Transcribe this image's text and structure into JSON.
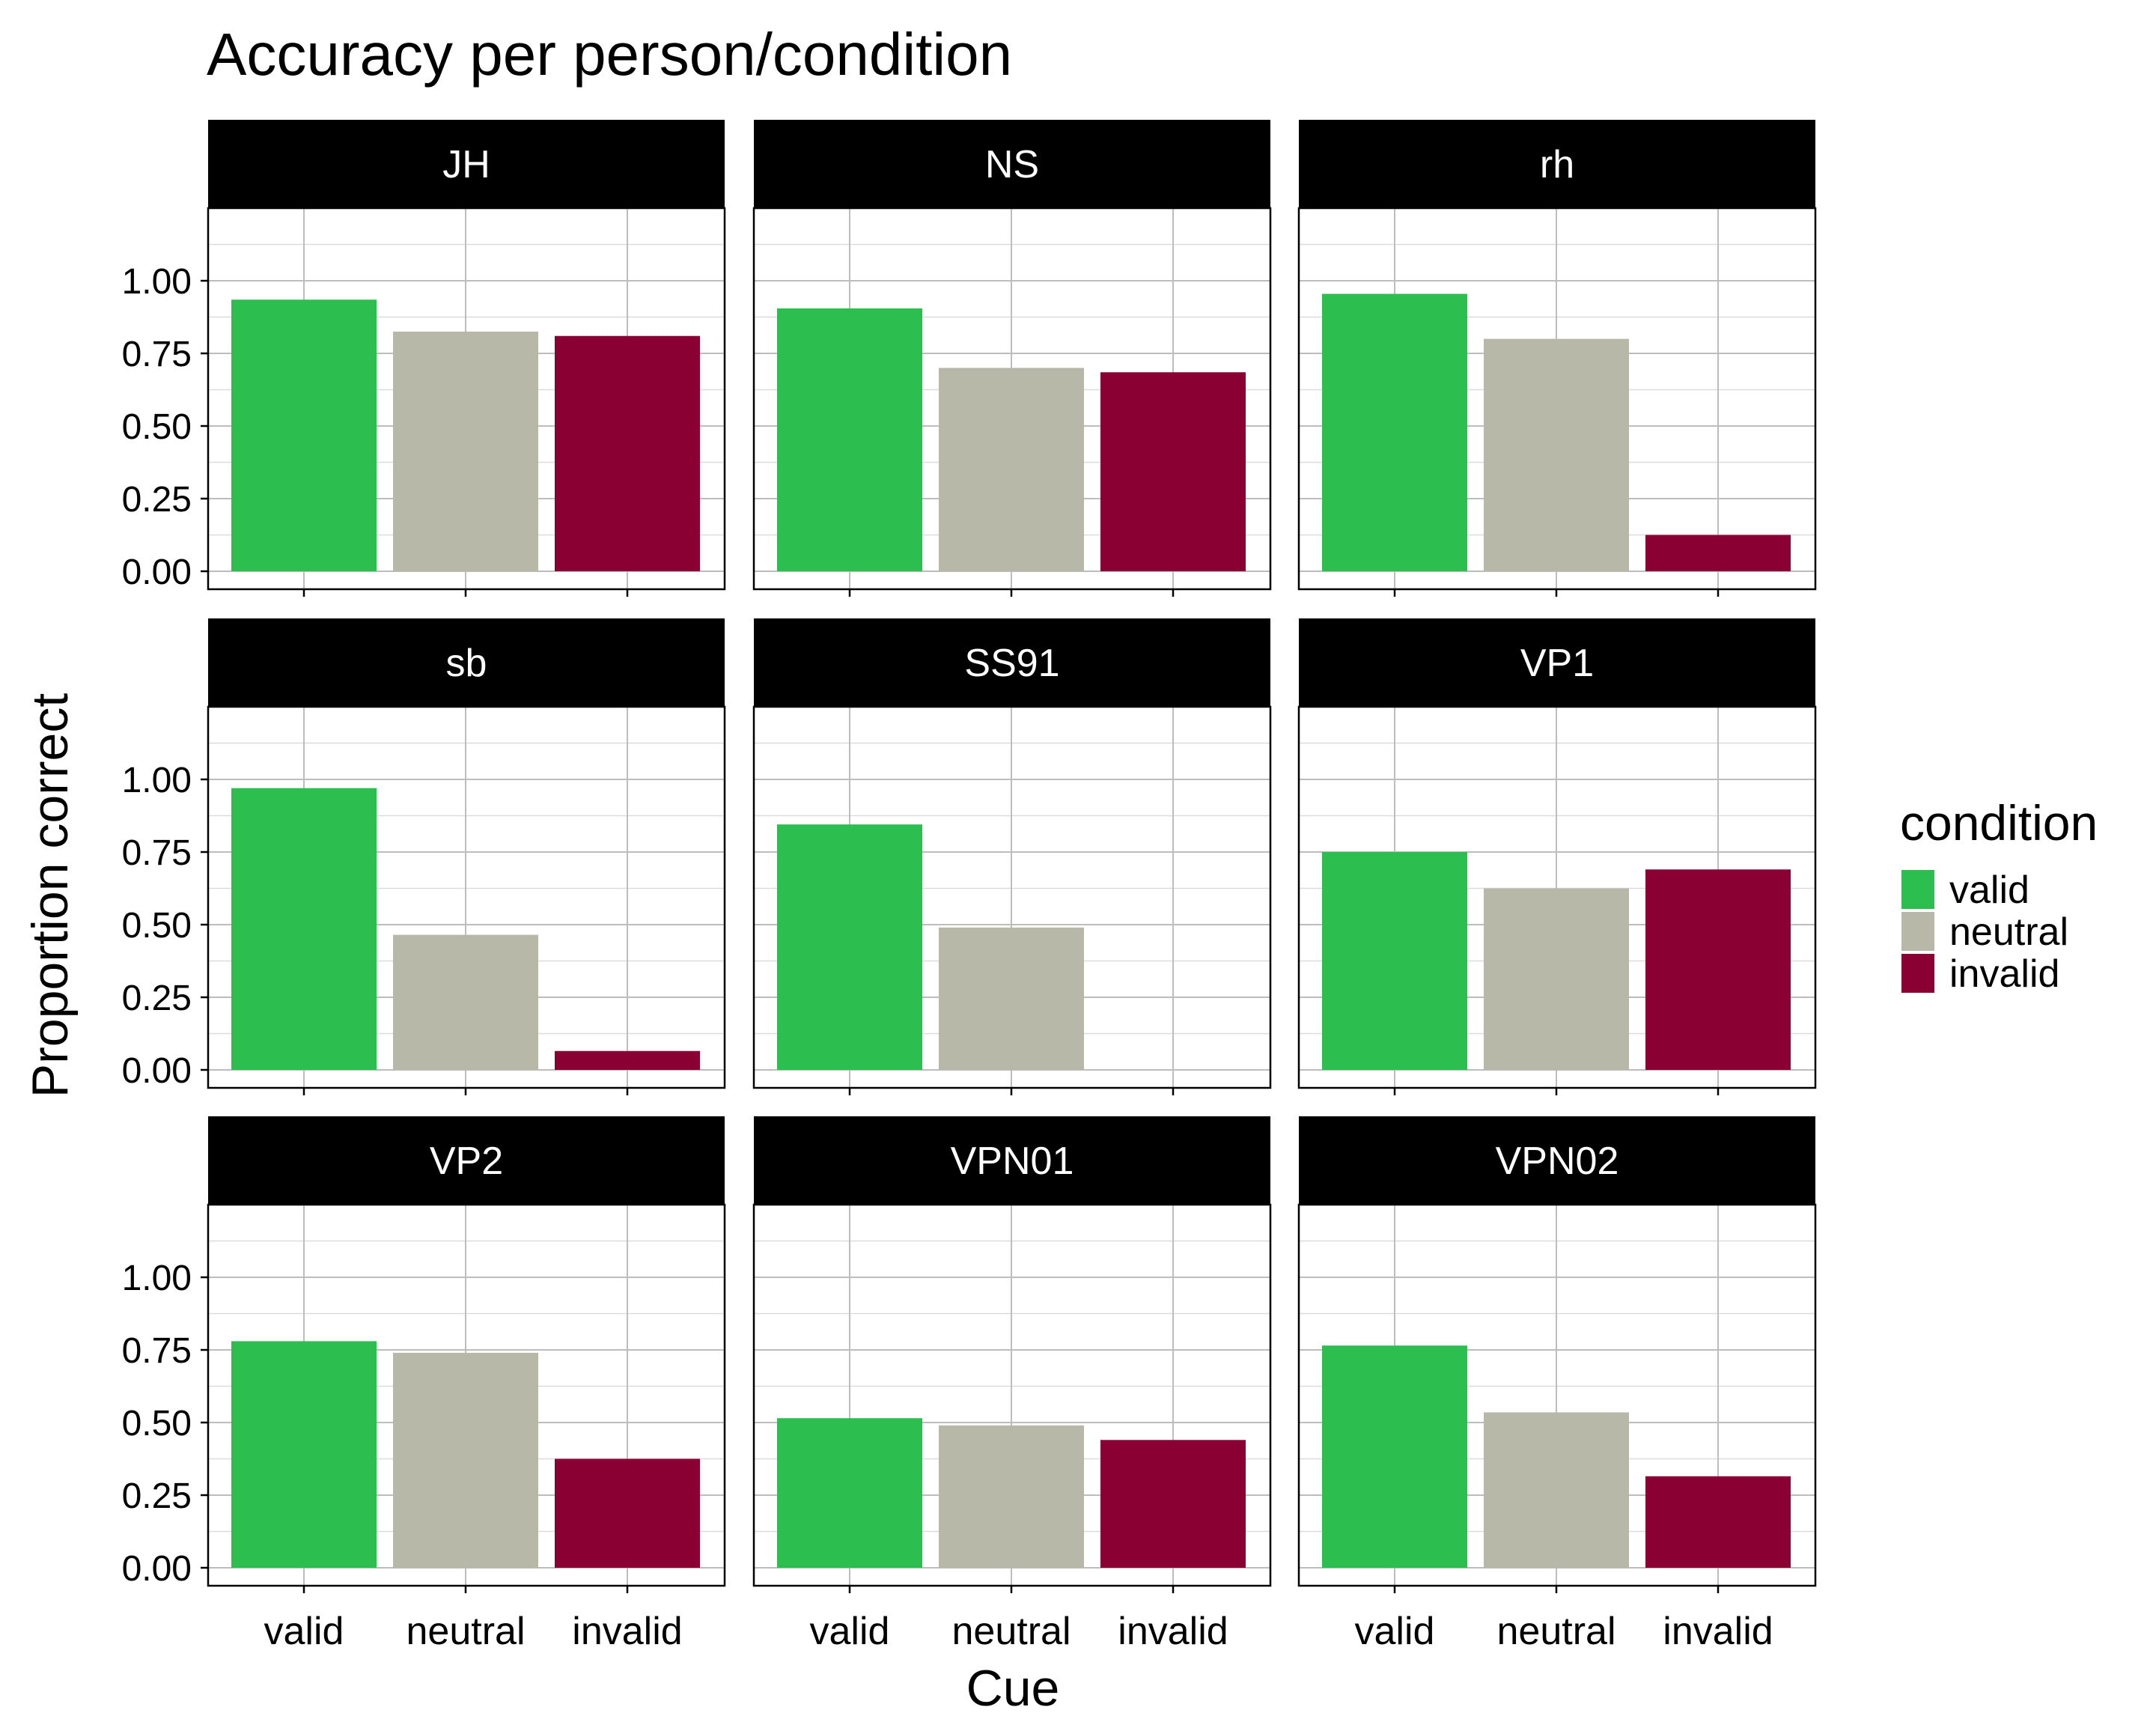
{
  "chart_data": {
    "type": "bar",
    "title": "Accuracy per person/condition",
    "xlabel": "Cue",
    "ylabel": "Proportion correct",
    "categories": [
      "valid",
      "neutral",
      "invalid"
    ],
    "ylim": [
      0,
      1.25
    ],
    "yticks": [
      "0.00",
      "0.25",
      "0.50",
      "0.75",
      "1.00"
    ],
    "ytick_values": [
      0,
      0.25,
      0.5,
      0.75,
      1.0
    ],
    "grid": true,
    "legend": {
      "title": "condition",
      "position": "right",
      "entries": [
        {
          "label": "valid",
          "color": "#2dbe50"
        },
        {
          "label": "neutral",
          "color": "#b7b8a8"
        },
        {
          "label": "invalid",
          "color": "#8a0033"
        }
      ]
    },
    "facets": [
      {
        "name": "JH",
        "values": [
          0.935,
          0.825,
          0.81
        ]
      },
      {
        "name": "NS",
        "values": [
          0.905,
          0.7,
          0.685
        ]
      },
      {
        "name": "rh",
        "values": [
          0.955,
          0.8,
          0.125
        ]
      },
      {
        "name": "sb",
        "values": [
          0.97,
          0.465,
          0.065
        ]
      },
      {
        "name": "SS91",
        "values": [
          0.845,
          0.49,
          null
        ]
      },
      {
        "name": "VP1",
        "values": [
          0.75,
          0.625,
          0.69
        ]
      },
      {
        "name": "VP2",
        "values": [
          0.78,
          0.74,
          0.375
        ]
      },
      {
        "name": "VPN01",
        "values": [
          0.515,
          0.49,
          0.44
        ]
      },
      {
        "name": "VPN02",
        "values": [
          0.765,
          0.535,
          0.315
        ]
      }
    ]
  }
}
